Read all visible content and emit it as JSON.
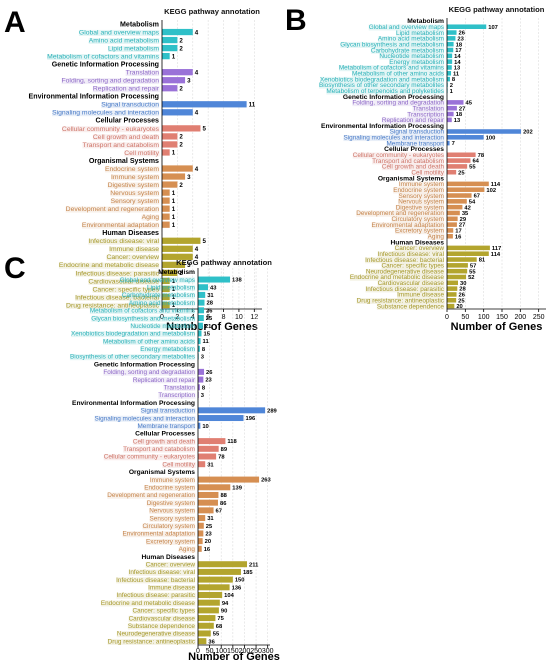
{
  "colors": {
    "Metabolism": "#2fc0c8",
    "Genetic Information Processing": "#9a72d8",
    "Environmental Information Processing": "#4f86d8",
    "Cellular Processes": "#e07f72",
    "Organismal Systems": "#d68f52",
    "Human Diseases": "#b3a52e"
  },
  "chart_data": [
    {
      "type": "bar",
      "orientation": "horizontal",
      "panel": "A",
      "title": "KEGG pathway annotation",
      "xlabel": "Number of Genes",
      "xlim": [
        0,
        13
      ],
      "xticks": [
        0,
        2,
        4,
        6,
        8,
        10,
        12
      ],
      "grid": true,
      "groups": [
        {
          "name": "Metabolism",
          "items": [
            {
              "label": "Global and overview maps",
              "value": 4
            },
            {
              "label": "Amino acid metabolism",
              "value": 2
            },
            {
              "label": "Lipid metabolism",
              "value": 2
            },
            {
              "label": "Metabolism of cofactors and vitamins",
              "value": 1
            }
          ]
        },
        {
          "name": "Genetic Information Processing",
          "items": [
            {
              "label": "Translation",
              "value": 4
            },
            {
              "label": "Folding, sorting and degradation",
              "value": 3
            },
            {
              "label": "Replication and repair",
              "value": 2
            }
          ]
        },
        {
          "name": "Environmental Information Processing",
          "items": [
            {
              "label": "Signal transduction",
              "value": 11
            },
            {
              "label": "Signaling molecules and interaction",
              "value": 4
            }
          ]
        },
        {
          "name": "Cellular Processes",
          "items": [
            {
              "label": "Cellular community - eukaryotes",
              "value": 5
            },
            {
              "label": "Cell growth and death",
              "value": 2
            },
            {
              "label": "Transport and catabolism",
              "value": 2
            },
            {
              "label": "Cell motility",
              "value": 1
            }
          ]
        },
        {
          "name": "Organismal Systems",
          "items": [
            {
              "label": "Endocrine system",
              "value": 4
            },
            {
              "label": "Immune system",
              "value": 3
            },
            {
              "label": "Digestive system",
              "value": 2
            },
            {
              "label": "Nervous system",
              "value": 1
            },
            {
              "label": "Sensory system",
              "value": 1
            },
            {
              "label": "Development and regeneration",
              "value": 1
            },
            {
              "label": "Aging",
              "value": 1
            },
            {
              "label": "Environmental adaptation",
              "value": 1
            }
          ]
        },
        {
          "name": "Human Diseases",
          "items": [
            {
              "label": "Infectious disease: viral",
              "value": 5
            },
            {
              "label": "Immune disease",
              "value": 4
            },
            {
              "label": "Cancer: overview",
              "value": 4
            },
            {
              "label": "Endocrine and metabolic disease",
              "value": 3
            },
            {
              "label": "Infectious disease: parasitic",
              "value": 2
            },
            {
              "label": "Cardiovascular disease",
              "value": 1
            },
            {
              "label": "Cancer: specific types",
              "value": 1
            },
            {
              "label": "Infectious disease: bacterial",
              "value": 1
            },
            {
              "label": "Drug resistance: antineoplastic",
              "value": 1
            }
          ]
        }
      ]
    },
    {
      "type": "bar",
      "orientation": "horizontal",
      "panel": "B",
      "title": "KEGG pathway annotation",
      "xlabel": "Number of Genes",
      "xlim": [
        0,
        270
      ],
      "xticks": [
        0,
        50,
        100,
        150,
        200,
        250
      ],
      "grid": true,
      "groups": [
        {
          "name": "Metabolism",
          "items": [
            {
              "label": "Global and overview maps",
              "value": 107
            },
            {
              "label": "Lipid metabolism",
              "value": 26
            },
            {
              "label": "Amino acid metabolism",
              "value": 23
            },
            {
              "label": "Glycan biosynthesis and metabolism",
              "value": 18
            },
            {
              "label": "Carbohydrate metabolism",
              "value": 17
            },
            {
              "label": "Nucleotide metabolism",
              "value": 14
            },
            {
              "label": "Energy metabolism",
              "value": 14
            },
            {
              "label": "Metabolism of cofactors and vitamins",
              "value": 13
            },
            {
              "label": "Metabolism of other amino acids",
              "value": 11
            },
            {
              "label": "Xenobiotics biodegradation and metabolism",
              "value": 8
            },
            {
              "label": "Biosynthesis of other secondary metabolites",
              "value": 2
            },
            {
              "label": "Metabolism of terpenoids and polyketides",
              "value": 1
            }
          ]
        },
        {
          "name": "Genetic Information Processing",
          "items": [
            {
              "label": "Folding, sorting and degradation",
              "value": 45
            },
            {
              "label": "Translation",
              "value": 27
            },
            {
              "label": "Transcription",
              "value": 18
            },
            {
              "label": "Replication and repair",
              "value": 13
            }
          ]
        },
        {
          "name": "Environmental Information Processing",
          "items": [
            {
              "label": "Signal transduction",
              "value": 202
            },
            {
              "label": "Signaling molecules and interaction",
              "value": 100
            },
            {
              "label": "Membrane transport",
              "value": 7
            }
          ]
        },
        {
          "name": "Cellular Processes",
          "items": [
            {
              "label": "Cellular community - eukaryotes",
              "value": 78
            },
            {
              "label": "Transport and catabolism",
              "value": 64
            },
            {
              "label": "Cell growth and death",
              "value": 55
            },
            {
              "label": "Cell motility",
              "value": 25
            }
          ]
        },
        {
          "name": "Organismal Systems",
          "items": [
            {
              "label": "Immune system",
              "value": 114
            },
            {
              "label": "Endocrine system",
              "value": 102
            },
            {
              "label": "Sensory system",
              "value": 67
            },
            {
              "label": "Nervous system",
              "value": 54
            },
            {
              "label": "Digestive system",
              "value": 42
            },
            {
              "label": "Development and regeneration",
              "value": 35
            },
            {
              "label": "Circulatory system",
              "value": 29
            },
            {
              "label": "Environmental adaptation",
              "value": 27
            },
            {
              "label": "Excretory system",
              "value": 17
            },
            {
              "label": "Aging",
              "value": 16
            }
          ]
        },
        {
          "name": "Human Diseases",
          "items": [
            {
              "label": "Cancer: overview",
              "value": 117
            },
            {
              "label": "Infectious disease: viral",
              "value": 114
            },
            {
              "label": "Infectious disease: bacterial",
              "value": 81
            },
            {
              "label": "Cancer: specific types",
              "value": 57
            },
            {
              "label": "Neurodegenerative disease",
              "value": 55
            },
            {
              "label": "Endocrine and metabolic disease",
              "value": 52
            },
            {
              "label": "Cardiovascular disease",
              "value": 30
            },
            {
              "label": "Infectious disease: parasitic",
              "value": 28
            },
            {
              "label": "Immune disease",
              "value": 26
            },
            {
              "label": "Drug resistance: antineoplastic",
              "value": 25
            },
            {
              "label": "Substance dependence",
              "value": 20
            }
          ]
        }
      ]
    },
    {
      "type": "bar",
      "orientation": "horizontal",
      "panel": "C",
      "title": "KEGG pathway annotation",
      "xlabel": "Number of Genes",
      "xlim": [
        0,
        310
      ],
      "xticks": [
        0,
        50,
        100,
        150,
        200,
        250,
        300
      ],
      "grid": true,
      "groups": [
        {
          "name": "Metabolism",
          "items": [
            {
              "label": "Global and overview maps",
              "value": 138
            },
            {
              "label": "Lipid metabolism",
              "value": 43
            },
            {
              "label": "Carbohydrate metabolism",
              "value": 31
            },
            {
              "label": "Amino acid metabolism",
              "value": 28
            },
            {
              "label": "Metabolism of cofactors and vitamins",
              "value": 26
            },
            {
              "label": "Glycan biosynthesis and metabolism",
              "value": 25
            },
            {
              "label": "Nucleotide metabolism",
              "value": 21
            },
            {
              "label": "Xenobiotics biodegradation and metabolism",
              "value": 15
            },
            {
              "label": "Metabolism of other amino acids",
              "value": 11
            },
            {
              "label": "Energy metabolism",
              "value": 8
            },
            {
              "label": "Biosynthesis of other secondary metabolites",
              "value": 3
            }
          ]
        },
        {
          "name": "Genetic Information Processing",
          "items": [
            {
              "label": "Folding, sorting and degradation",
              "value": 26
            },
            {
              "label": "Replication and repair",
              "value": 23
            },
            {
              "label": "Translation",
              "value": 8
            },
            {
              "label": "Transcription",
              "value": 3
            }
          ]
        },
        {
          "name": "Environmental Information Processing",
          "items": [
            {
              "label": "Signal transduction",
              "value": 289
            },
            {
              "label": "Signaling molecules and interaction",
              "value": 196
            },
            {
              "label": "Membrane transport",
              "value": 10
            }
          ]
        },
        {
          "name": "Cellular Processes",
          "items": [
            {
              "label": "Cell growth and death",
              "value": 118
            },
            {
              "label": "Transport and catabolism",
              "value": 89
            },
            {
              "label": "Cellular community - eukaryotes",
              "value": 78
            },
            {
              "label": "Cell motility",
              "value": 31
            }
          ]
        },
        {
          "name": "Organismal Systems",
          "items": [
            {
              "label": "Immune system",
              "value": 263
            },
            {
              "label": "Endocrine system",
              "value": 139
            },
            {
              "label": "Development and regeneration",
              "value": 88
            },
            {
              "label": "Digestive system",
              "value": 86
            },
            {
              "label": "Nervous system",
              "value": 67
            },
            {
              "label": "Sensory system",
              "value": 31
            },
            {
              "label": "Circulatory system",
              "value": 25
            },
            {
              "label": "Environmental adaptation",
              "value": 23
            },
            {
              "label": "Excretory system",
              "value": 20
            },
            {
              "label": "Aging",
              "value": 16
            }
          ]
        },
        {
          "name": "Human Diseases",
          "items": [
            {
              "label": "Cancer: overview",
              "value": 211
            },
            {
              "label": "Infectious disease: viral",
              "value": 185
            },
            {
              "label": "Infectious disease: bacterial",
              "value": 150
            },
            {
              "label": "Immune disease",
              "value": 136
            },
            {
              "label": "Infectious disease: parasitic",
              "value": 104
            },
            {
              "label": "Endocrine and metabolic disease",
              "value": 94
            },
            {
              "label": "Cancer: specific types",
              "value": 90
            },
            {
              "label": "Cardiovascular disease",
              "value": 75
            },
            {
              "label": "Substance dependence",
              "value": 68
            },
            {
              "label": "Neurodegenerative disease",
              "value": 55
            },
            {
              "label": "Drug resistance: antineoplastic",
              "value": 36
            }
          ]
        }
      ]
    }
  ]
}
